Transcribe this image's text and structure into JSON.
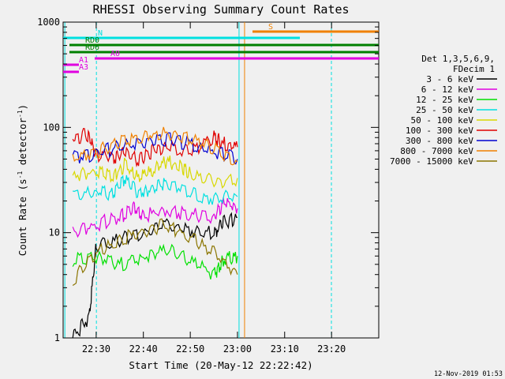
{
  "chart_data": {
    "type": "line",
    "title": "RHESSI Observing Summary Count Rates",
    "xlabel": "Start Time (20-May-12 22:22:42)",
    "ylabel_main": "Count Rate (s",
    "ylabel_sup1": "-1",
    "ylabel_mid": " detector",
    "ylabel_sup2": "-1",
    "ylabel_end": ")",
    "y_scale": "log",
    "ylim": [
      1,
      1000
    ],
    "xlim_minutes": [
      22.383,
      23.5
    ],
    "x_tick_labels": [
      "22:30",
      "22:40",
      "22:50",
      "23:00",
      "23:10",
      "23:20"
    ],
    "x_tick_values": [
      22.5,
      22.667,
      22.833,
      23.0,
      23.167,
      23.333
    ],
    "y_tick_labels": [
      "1",
      "10",
      "100",
      "1000"
    ],
    "y_tick_values": [
      1,
      10,
      100,
      1000
    ],
    "legend": {
      "header_line1": "Det 1,3,5,6,9,",
      "header_line2": "FDecim 1",
      "placement": "right"
    },
    "series": [
      {
        "name": "3 - 6 keV",
        "color": "#000000",
        "values": [
          [
            22.417,
            1.0
          ],
          [
            22.475,
            1.6
          ],
          [
            22.5,
            7.5
          ],
          [
            22.583,
            8.5
          ],
          [
            22.667,
            10.0
          ],
          [
            22.75,
            11.5
          ],
          [
            22.833,
            10.5
          ],
          [
            22.917,
            10.0
          ],
          [
            22.95,
            12.5
          ],
          [
            23.0,
            14.0
          ]
        ]
      },
      {
        "name": "6 - 12 keV",
        "color": "#e000e0",
        "values": [
          [
            22.417,
            10.0
          ],
          [
            22.5,
            12.0
          ],
          [
            22.583,
            14.0
          ],
          [
            22.63,
            17.0
          ],
          [
            22.667,
            14.5
          ],
          [
            22.75,
            16.5
          ],
          [
            22.833,
            15.0
          ],
          [
            22.917,
            14.0
          ],
          [
            22.95,
            19.0
          ],
          [
            23.0,
            17.0
          ]
        ]
      },
      {
        "name": "12 - 25 keV",
        "color": "#00e000",
        "values": [
          [
            22.417,
            5.5
          ],
          [
            22.5,
            6.0
          ],
          [
            22.583,
            5.0
          ],
          [
            22.667,
            5.8
          ],
          [
            22.75,
            7.0
          ],
          [
            22.833,
            5.5
          ],
          [
            22.917,
            4.0
          ],
          [
            22.95,
            5.5
          ],
          [
            23.0,
            6.0
          ]
        ]
      },
      {
        "name": "25 - 50 keV",
        "color": "#00e0e0",
        "values": [
          [
            22.417,
            22.0
          ],
          [
            22.5,
            24.0
          ],
          [
            22.56,
            24.0
          ],
          [
            22.6,
            33.0
          ],
          [
            22.65,
            24.0
          ],
          [
            22.7,
            26.0
          ],
          [
            22.75,
            30.0
          ],
          [
            22.833,
            24.0
          ],
          [
            22.917,
            21.0
          ],
          [
            23.0,
            22.0
          ]
        ]
      },
      {
        "name": "50 - 100 keV",
        "color": "#d8d800",
        "values": [
          [
            22.417,
            35.0
          ],
          [
            22.5,
            38.0
          ],
          [
            22.56,
            34.0
          ],
          [
            22.6,
            44.0
          ],
          [
            22.65,
            33.0
          ],
          [
            22.7,
            38.0
          ],
          [
            22.75,
            48.0
          ],
          [
            22.8,
            42.0
          ],
          [
            22.833,
            36.0
          ],
          [
            22.917,
            30.0
          ],
          [
            23.0,
            33.0
          ]
        ]
      },
      {
        "name": "100 - 300 keV",
        "color": "#e00000",
        "values": [
          [
            22.417,
            80.0
          ],
          [
            22.47,
            85.0
          ],
          [
            22.5,
            55.0
          ],
          [
            22.56,
            52.0
          ],
          [
            22.6,
            58.0
          ],
          [
            22.65,
            48.0
          ],
          [
            22.7,
            60.0
          ],
          [
            22.75,
            66.0
          ],
          [
            22.833,
            58.0
          ],
          [
            22.917,
            82.0
          ],
          [
            22.95,
            70.0
          ],
          [
            23.0,
            65.0
          ]
        ]
      },
      {
        "name": "300 - 800 keV",
        "color": "#0000d0",
        "values": [
          [
            22.417,
            52.0
          ],
          [
            22.5,
            56.0
          ],
          [
            22.583,
            66.0
          ],
          [
            22.667,
            74.0
          ],
          [
            22.75,
            77.0
          ],
          [
            22.833,
            70.0
          ],
          [
            22.917,
            58.0
          ],
          [
            23.0,
            50.0
          ]
        ]
      },
      {
        "name": "800 - 7000 keV",
        "color": "#f08000",
        "values": [
          [
            22.417,
            50.0
          ],
          [
            22.5,
            58.0
          ],
          [
            22.583,
            72.0
          ],
          [
            22.667,
            82.0
          ],
          [
            22.75,
            88.0
          ],
          [
            22.833,
            80.0
          ],
          [
            22.917,
            62.0
          ],
          [
            23.0,
            47.0
          ]
        ]
      },
      {
        "name": "7000 - 15000 keV",
        "color": "#8b7500",
        "values": [
          [
            22.417,
            3.5
          ],
          [
            22.5,
            6.5
          ],
          [
            22.583,
            8.5
          ],
          [
            22.667,
            10.5
          ],
          [
            22.75,
            12.0
          ],
          [
            22.833,
            9.0
          ],
          [
            22.917,
            6.5
          ],
          [
            23.0,
            4.0
          ]
        ]
      }
    ],
    "flags": [
      {
        "label": "N",
        "color": "#00e0e0",
        "level": 0
      },
      {
        "label": "RD0",
        "color": "#008000",
        "level": 1
      },
      {
        "label": "RD6",
        "color": "#008000",
        "level": 2
      },
      {
        "label": "A0",
        "color": "#e000e0",
        "level": 3
      },
      {
        "label": "A1",
        "color": "#e000e0",
        "level": 4
      },
      {
        "label": "A3",
        "color": "#e000e0",
        "level": 5
      },
      {
        "label": "S",
        "color": "#f08000",
        "level": 6
      }
    ],
    "timestamp": "12-Nov-2019 01:53"
  }
}
